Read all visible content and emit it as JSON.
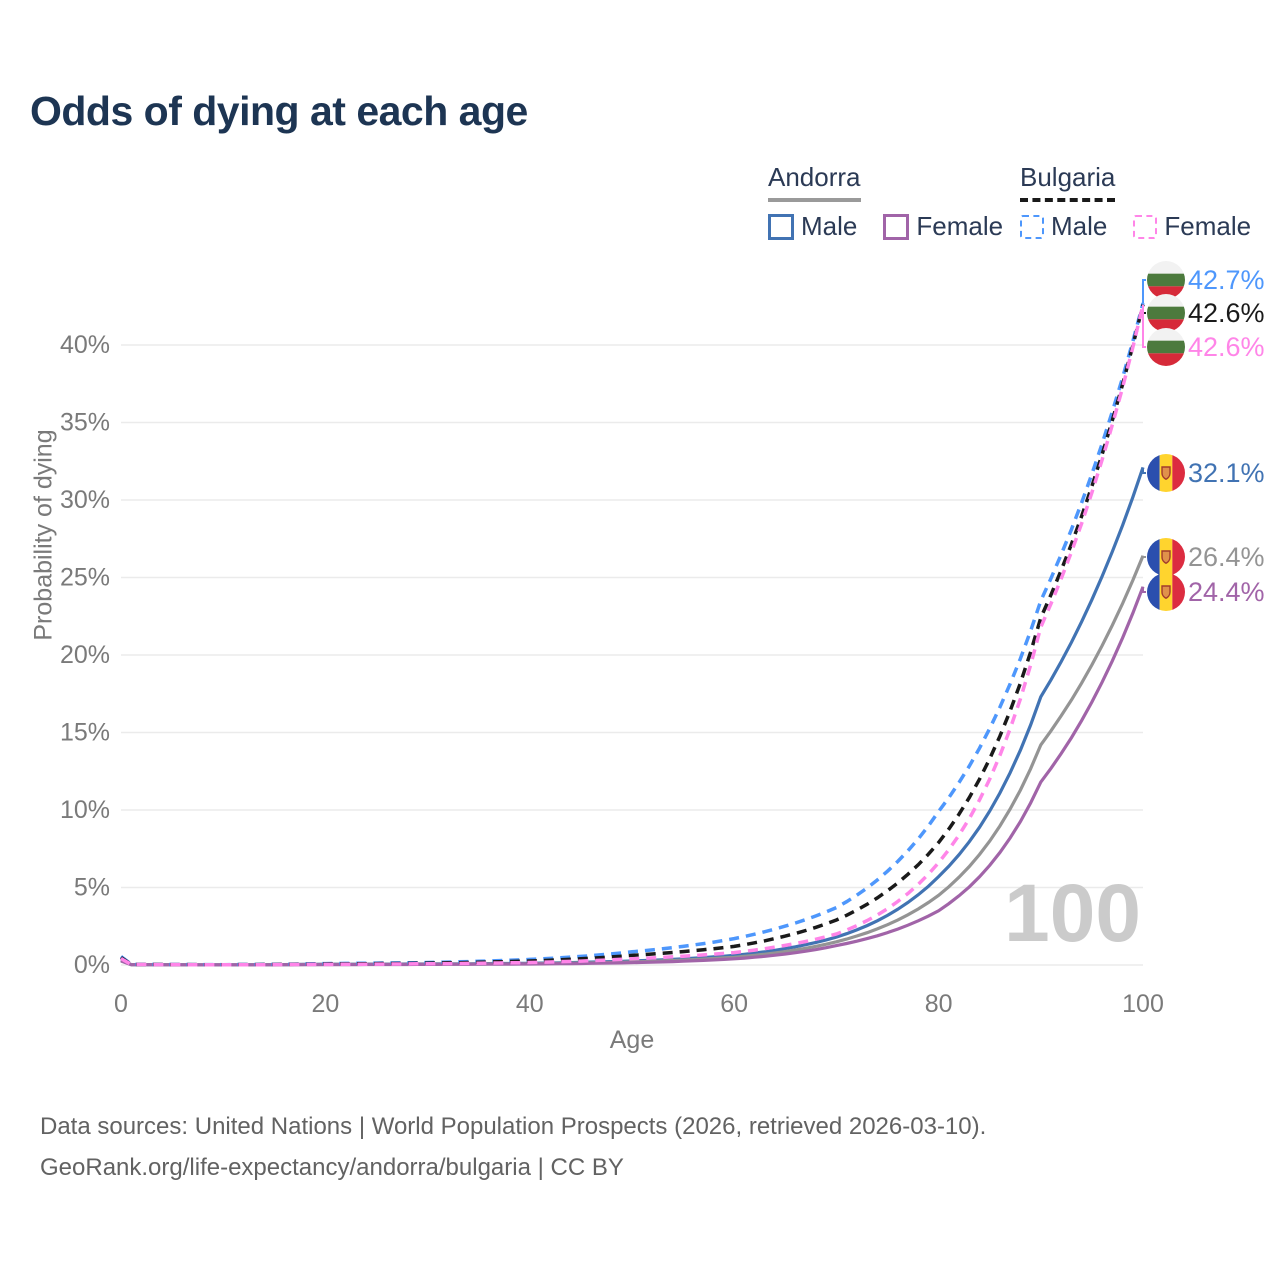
{
  "title": "Odds of dying at each age",
  "legend": {
    "groups": [
      {
        "country": "Andorra",
        "line_style": "solid",
        "items": [
          {
            "label": "Male"
          },
          {
            "label": "Female"
          }
        ]
      },
      {
        "country": "Bulgaria",
        "line_style": "dashed",
        "items": [
          {
            "label": "Male"
          },
          {
            "label": "Female"
          }
        ]
      }
    ]
  },
  "colors": {
    "title_text": "#1d3553",
    "legend_text": "#2b3a55",
    "axis_text": "#7a7a7a",
    "gridline": "#ebebeb",
    "watermark": "#cbcbcb",
    "footer_text": "#626262",
    "andorra_male": "#4173b3",
    "andorra_both": "#949494",
    "andorra_female": "#a164a8",
    "bulgaria_male": "#4e97fc",
    "bulgaria_both": "#1a1a1a",
    "bulgaria_female": "#ff85e8"
  },
  "chart_data": {
    "type": "line",
    "title": "Odds of dying at each age",
    "xlabel": "Age",
    "ylabel": "Probability of dying",
    "xlim": [
      0,
      100
    ],
    "ylim": [
      0,
      44
    ],
    "grid": "horizontal-only",
    "legend_position": "top-right",
    "age_indicator_watermark": "100",
    "xtick_values": [
      0,
      20,
      40,
      60,
      80,
      100
    ],
    "xtick_labels": [
      "0",
      "20",
      "40",
      "60",
      "80",
      "100"
    ],
    "ytick_values": [
      0,
      5,
      10,
      15,
      20,
      25,
      30,
      35,
      40
    ],
    "ytick_labels": [
      "0%",
      "5%",
      "10%",
      "15%",
      "20%",
      "25%",
      "30%",
      "35%",
      "40%"
    ],
    "anchor_ages": [
      0,
      1,
      10,
      20,
      30,
      40,
      50,
      60,
      70,
      80,
      90,
      100
    ],
    "series": [
      {
        "name": "Andorra Male",
        "country": "Andorra",
        "sex": "Male",
        "style": "solid",
        "color": "#4173b3",
        "flag": "ad",
        "end_label": "32.1%",
        "values_pct": [
          0.32,
          0.028,
          0.012,
          0.05,
          0.065,
          0.11,
          0.26,
          0.62,
          1.8,
          5.7,
          17.3,
          32.1
        ]
      },
      {
        "name": "Andorra Both sexes",
        "country": "Andorra",
        "sex": "Both sexes",
        "style": "solid",
        "color": "#949494",
        "flag": "ad",
        "end_label": "26.4%",
        "values_pct": [
          0.29,
          0.024,
          0.01,
          0.038,
          0.05,
          0.085,
          0.2,
          0.5,
          1.5,
          4.5,
          14.2,
          26.4
        ]
      },
      {
        "name": "Andorra Female",
        "country": "Andorra",
        "sex": "Female",
        "style": "solid",
        "color": "#a164a8",
        "flag": "ad",
        "end_label": "24.4%",
        "values_pct": [
          0.26,
          0.02,
          0.009,
          0.025,
          0.038,
          0.065,
          0.15,
          0.4,
          1.25,
          3.5,
          11.8,
          24.4
        ]
      },
      {
        "name": "Bulgaria Male",
        "country": "Bulgaria",
        "sex": "Male",
        "style": "dashed",
        "color": "#4e97fc",
        "flag": "bg",
        "end_label": "42.7%",
        "values_pct": [
          0.55,
          0.045,
          0.022,
          0.09,
          0.16,
          0.36,
          0.85,
          1.7,
          3.7,
          9.9,
          23.5,
          42.7
        ]
      },
      {
        "name": "Bulgaria Both sexes",
        "country": "Bulgaria",
        "sex": "Both sexes",
        "style": "dashed",
        "color": "#1a1a1a",
        "flag": "bg",
        "end_label": "42.6%",
        "values_pct": [
          0.48,
          0.038,
          0.018,
          0.065,
          0.12,
          0.26,
          0.62,
          1.2,
          2.9,
          7.9,
          22.4,
          42.6
        ]
      },
      {
        "name": "Bulgaria Female",
        "country": "Bulgaria",
        "sex": "Female",
        "style": "dashed",
        "color": "#ff85e8",
        "flag": "bg",
        "end_label": "42.6%",
        "values_pct": [
          0.42,
          0.032,
          0.015,
          0.04,
          0.08,
          0.16,
          0.4,
          0.8,
          2.0,
          6.6,
          21.8,
          42.6
        ]
      }
    ]
  },
  "footer": {
    "line1": "Data sources: United Nations | World Population Prospects (2026, retrieved 2026-03-10).",
    "line2": "GeoRank.org/life-expectancy/andorra/bulgaria | CC BY"
  }
}
